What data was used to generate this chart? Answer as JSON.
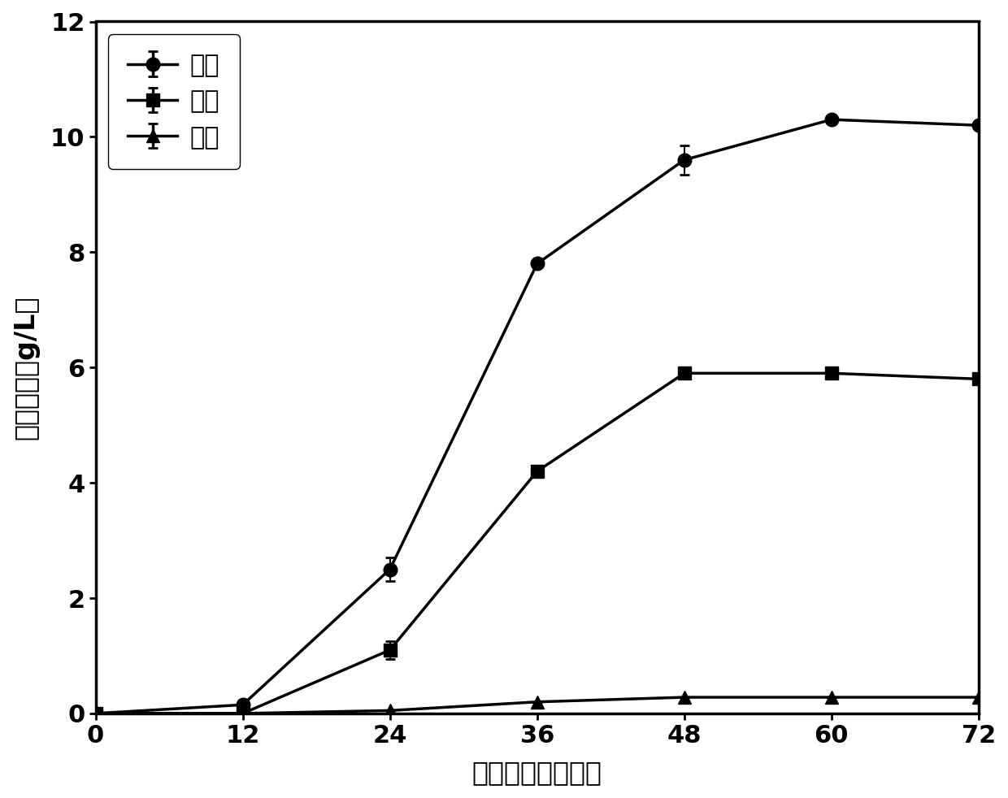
{
  "x": [
    0,
    12,
    24,
    36,
    48,
    60,
    72
  ],
  "butanol_y": [
    0.0,
    0.15,
    2.5,
    7.8,
    9.6,
    10.3,
    10.2
  ],
  "butanol_yerr": [
    0.0,
    0.0,
    0.2,
    0.0,
    0.25,
    0.0,
    0.0
  ],
  "acetone_y": [
    0.0,
    0.0,
    1.1,
    4.2,
    5.9,
    5.9,
    5.8
  ],
  "acetone_yerr": [
    0.0,
    0.0,
    0.15,
    0.0,
    0.0,
    0.0,
    0.0
  ],
  "ethanol_y": [
    0.0,
    0.0,
    0.05,
    0.2,
    0.28,
    0.28,
    0.28
  ],
  "ethanol_yerr": [
    0.0,
    0.0,
    0.0,
    0.0,
    0.0,
    0.0,
    0.0
  ],
  "xlabel": "发酵时间（小时）",
  "ylabel": "溢剂浓度（g/L）",
  "legend_butanol": "丁醇",
  "legend_acetone": "丙酩",
  "legend_ethanol": "乙醇",
  "ylim": [
    0,
    12
  ],
  "xlim": [
    0,
    72
  ],
  "xticks": [
    0,
    12,
    24,
    36,
    48,
    60,
    72
  ],
  "yticks": [
    0,
    2,
    4,
    6,
    8,
    10,
    12
  ],
  "line_color": "#000000",
  "line_width": 2.5,
  "marker_size": 12,
  "font_size_label": 24,
  "font_size_tick": 22,
  "font_size_legend": 22
}
